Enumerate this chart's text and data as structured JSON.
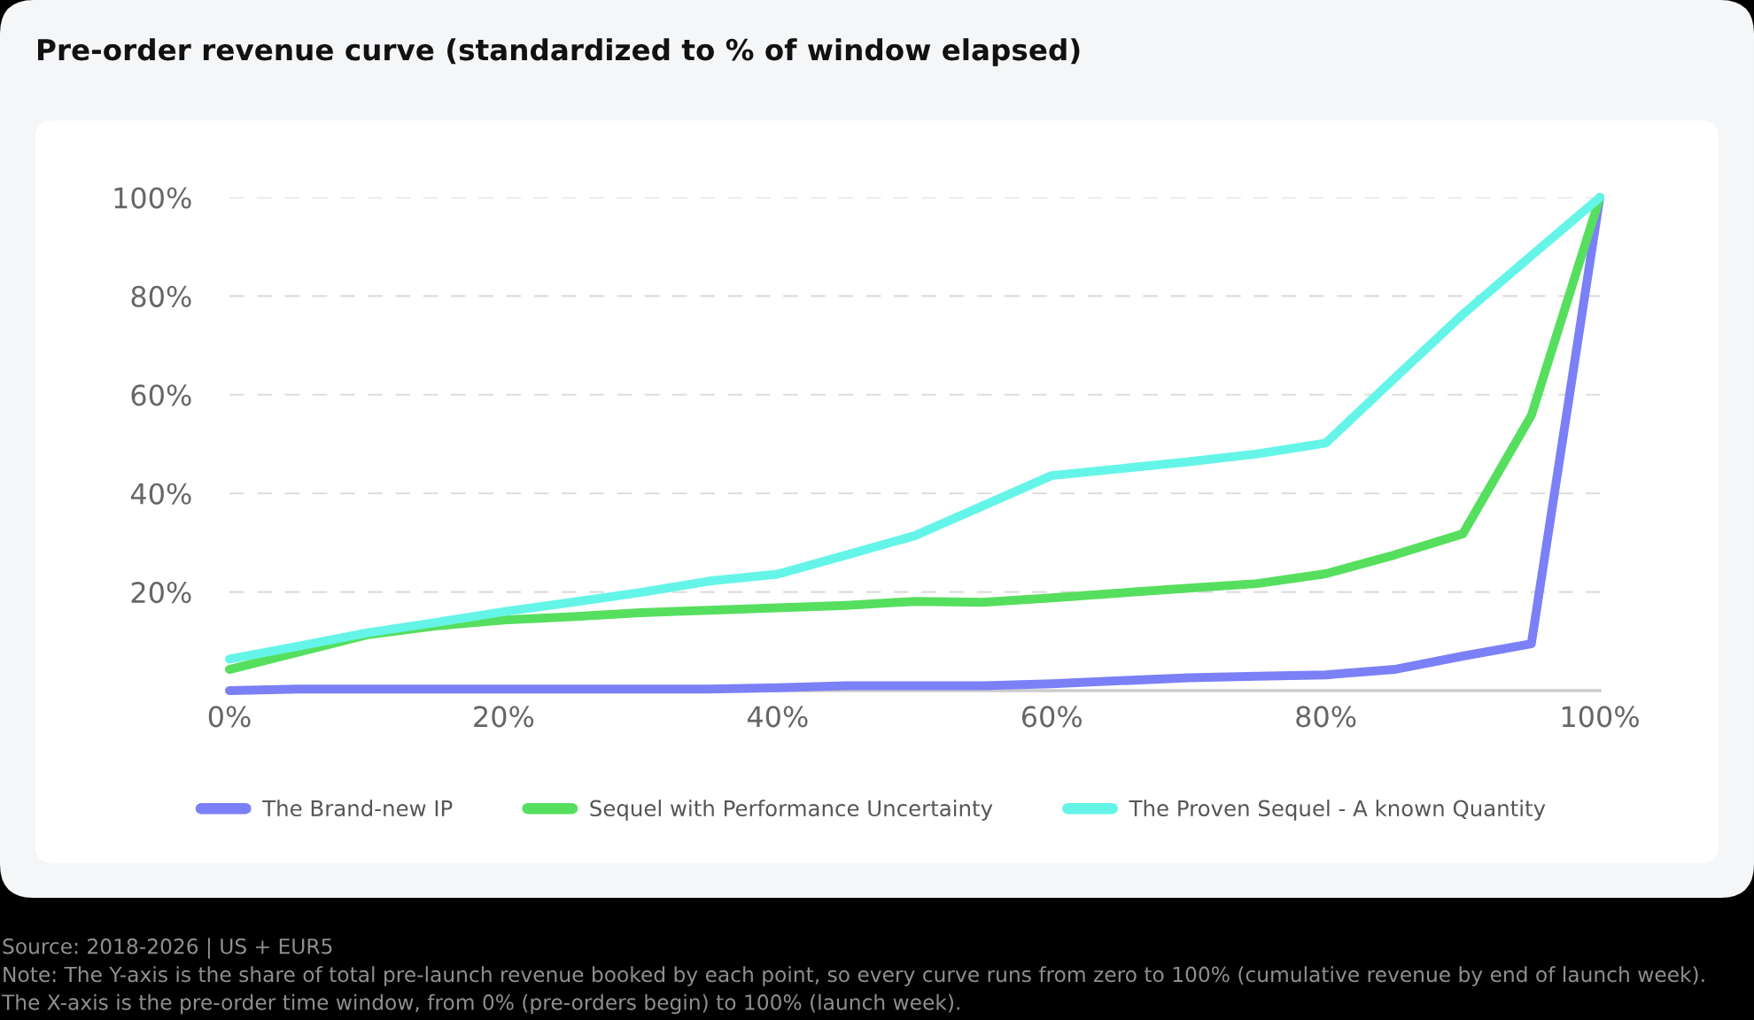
{
  "chart_data": {
    "type": "line",
    "title": "Pre-order revenue curve (standardized to % of window elapsed)",
    "x": [
      0,
      5,
      10,
      15,
      20,
      25,
      30,
      35,
      40,
      45,
      50,
      55,
      60,
      65,
      70,
      75,
      80,
      85,
      90,
      95,
      100
    ],
    "series": [
      {
        "name": "The Brand-new IP",
        "color": "#7b80f7",
        "values": [
          0,
          0.3,
          0.3,
          0.3,
          0.3,
          0.3,
          0.3,
          0.3,
          0.6,
          1.0,
          1.0,
          1.0,
          1.4,
          2.0,
          2.6,
          2.9,
          3.2,
          4.3,
          7.0,
          9.5,
          100
        ]
      },
      {
        "name": "Sequel with Performance Uncertainty",
        "color": "#56df5f",
        "values": [
          4.3,
          7.8,
          11.3,
          13.1,
          14.3,
          15.0,
          15.8,
          16.3,
          16.8,
          17.3,
          18.1,
          17.9,
          18.8,
          19.8,
          20.8,
          21.7,
          23.7,
          27.5,
          31.8,
          55.8,
          100
        ]
      },
      {
        "name": "The Proven Sequel - A known Quantity",
        "color": "#64f5e8",
        "values": [
          6.4,
          9.0,
          11.7,
          13.8,
          16.0,
          17.9,
          19.9,
          22.2,
          23.6,
          27.5,
          31.4,
          37.5,
          43.6,
          45.0,
          46.4,
          48.0,
          50.2,
          63.3,
          76.3,
          88.2,
          100
        ]
      }
    ],
    "xlim": [
      0,
      100
    ],
    "xticks": [
      {
        "value": 0,
        "label": "0%"
      },
      {
        "value": 20,
        "label": "20%"
      },
      {
        "value": 40,
        "label": "40%"
      },
      {
        "value": 60,
        "label": "60%"
      },
      {
        "value": 80,
        "label": "80%"
      },
      {
        "value": 100,
        "label": "100%"
      }
    ],
    "ylim": [
      0,
      100
    ],
    "yticks": [
      {
        "value": 20,
        "label": "20%"
      },
      {
        "value": 40,
        "label": "40%"
      },
      {
        "value": 60,
        "label": "60%"
      },
      {
        "value": 80,
        "label": "80%"
      },
      {
        "value": 100,
        "label": "100%"
      }
    ],
    "grid": "y",
    "legend": "bottom",
    "annotations": [
      "Source: 2018-2026 | US + EUR5",
      "Note: The Y-axis is the share of total pre-launch revenue booked by each point, so every curve runs from zero to 100% (cumulative revenue by end of launch week).",
      "The X-axis is the pre-order time window, from 0% (pre-orders begin) to 100% (launch week)."
    ]
  }
}
